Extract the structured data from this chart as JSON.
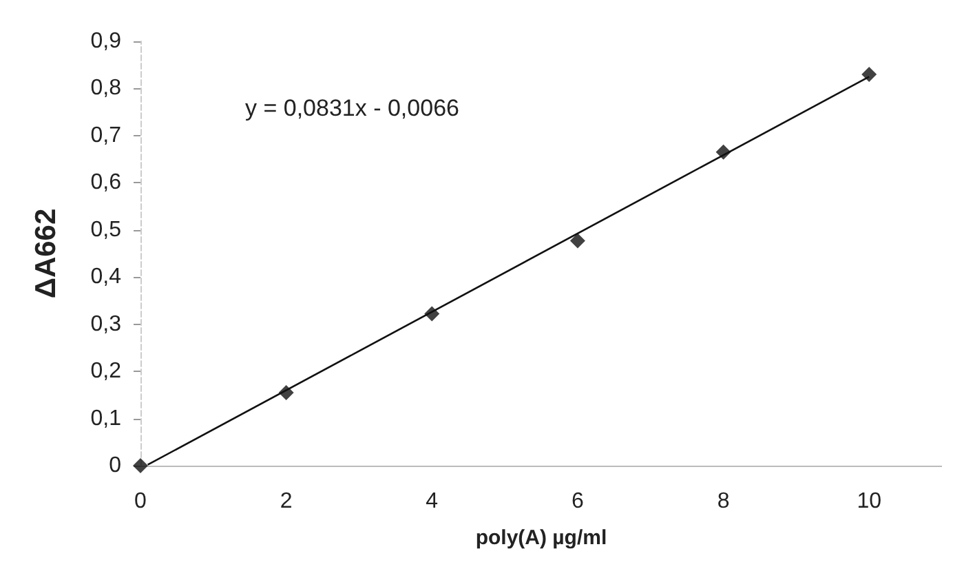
{
  "chart_data": {
    "type": "scatter",
    "xlabel": "poly(A) µg/ml",
    "ylabel": "ΔA662",
    "annotations": [
      "y = 0,0831x - 0,0066"
    ],
    "xlim": [
      0,
      11
    ],
    "xticks": [
      0,
      2,
      4,
      6,
      8,
      10
    ],
    "ylim": [
      0,
      0.9
    ],
    "yticks": [
      0,
      {
        "value": 0.1,
        "label": "0,1"
      },
      {
        "value": 0.2,
        "label": "0,2"
      },
      {
        "value": 0.3,
        "label": "0,3"
      },
      {
        "value": 0.4,
        "label": "0,4"
      },
      {
        "value": 0.5,
        "label": "0,5"
      },
      {
        "value": 0.6,
        "label": "0,6"
      },
      {
        "value": 0.7,
        "label": "0,7"
      },
      {
        "value": 0.8,
        "label": "0,8"
      },
      {
        "value": 0.9,
        "label": "0,9"
      }
    ],
    "grid": false,
    "marker": "diamond",
    "series": [
      {
        "color": "#111111",
        "x": [
          0,
          2,
          4,
          6,
          8,
          10
        ],
        "values": [
          0,
          0.155,
          0.322,
          0.477,
          0.665,
          0.83
        ]
      },
      {
        "type": "line",
        "color": "#111111",
        "line_style": "solid",
        "marker": "none",
        "x": [
          0.1,
          10
        ],
        "values": [
          0.002,
          0.825
        ]
      }
    ]
  }
}
